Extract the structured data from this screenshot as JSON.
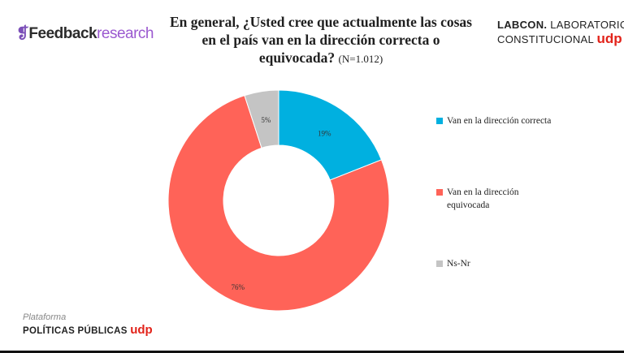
{
  "header": {
    "brand_left": {
      "mark": "❡",
      "part1": "Feedback",
      "part2": "research"
    },
    "title": "En general, ¿Usted cree que actualmente las cosas en el país van en la dirección correcta o equivocada?",
    "title_note": "(N=1.012)",
    "brand_right": {
      "line1_bold": "LABCON.",
      "line1_rest": " LABORATORIO",
      "line2": "CONSTITUCIONAL ",
      "udp": "udp"
    }
  },
  "footer": {
    "plataforma": "Plataforma",
    "politicas": "POLÍTICAS PÚBLICAS ",
    "udp": "udp"
  },
  "colors": {
    "correcta": "#00b0e0",
    "equivocada": "#ff6358",
    "nsnr": "#c4c4c4",
    "udp_red": "#e2231a"
  },
  "chart_data": {
    "type": "pie",
    "donut": true,
    "categories": [
      "Van en la dirección correcta",
      "Van en la dirección equivocada",
      "Ns-Nr"
    ],
    "values": [
      19,
      76,
      5
    ],
    "labels": [
      "19%",
      "76%",
      "5%"
    ],
    "legend_position": "right"
  },
  "legend": [
    {
      "label": "Van en la dirección correcta"
    },
    {
      "label": "Van en la dirección equivocada"
    },
    {
      "label": "Ns-Nr"
    }
  ]
}
